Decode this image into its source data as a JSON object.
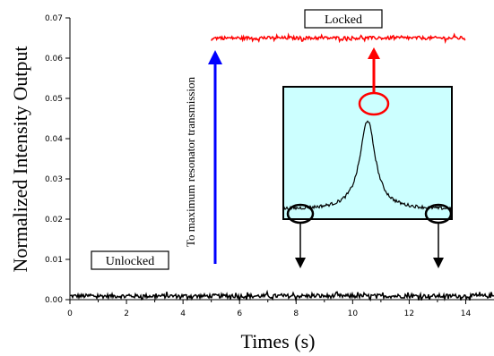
{
  "chart_data": {
    "type": "line",
    "title": "",
    "xlabel": "Times (s)",
    "ylabel": "Normalized Intensity Output",
    "xlim": [
      0,
      15
    ],
    "ylim": [
      0,
      0.07
    ],
    "x_ticks": [
      0,
      2,
      4,
      6,
      8,
      10,
      12,
      14
    ],
    "x_tick_labels": [
      "0",
      "2",
      "4",
      "6",
      "8",
      "10",
      "12",
      "14"
    ],
    "y_ticks": [
      0.0,
      0.01,
      0.02,
      0.03,
      0.04,
      0.05,
      0.06,
      0.07
    ],
    "y_tick_labels": [
      "0.00",
      "0.01",
      "0.02",
      "0.03",
      "0.04",
      "0.05",
      "0.06",
      "0.07"
    ],
    "grid": false,
    "series": [
      {
        "color": "#000000",
        "x_range": [
          0,
          15
        ],
        "mean": 0.0009,
        "noise": 0.0005
      },
      {
        "color": "#ff0000",
        "x_range": [
          5.0,
          14.0
        ],
        "mean": 0.065,
        "noise": 0.0004
      }
    ],
    "annotations": {
      "unlocked": "Unlocked",
      "locked": "Locked",
      "arrow_text": "To maximum resonator transmission"
    },
    "inset": {
      "type": "line",
      "background": "#ccffff",
      "peak_x": 0.5,
      "peak_height": 1.0,
      "half_width": 0.055,
      "baseline": 0.04,
      "color": "#000000"
    },
    "colors": {
      "blue_arrow": "#0000ff",
      "red_arrow": "#ff0000",
      "black": "#000000"
    }
  }
}
